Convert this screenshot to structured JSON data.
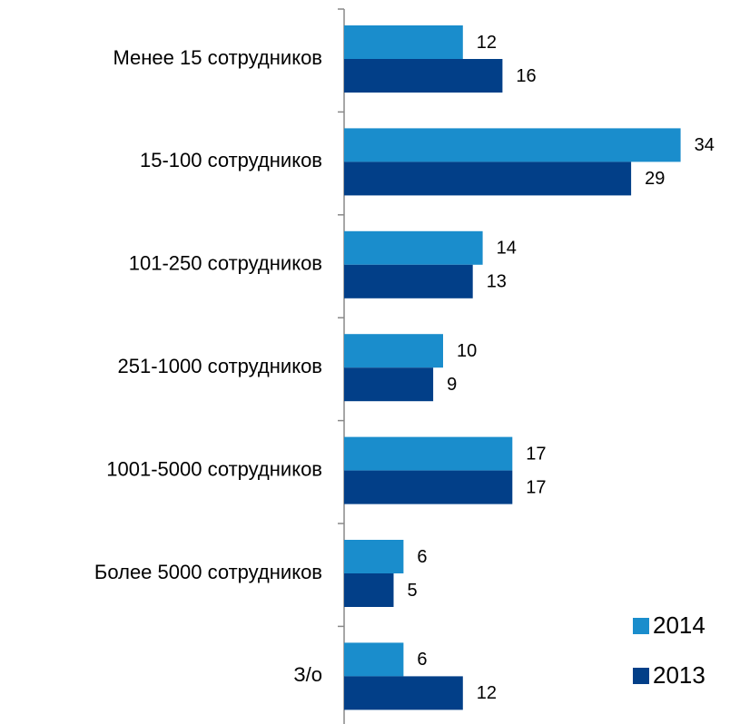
{
  "chart_data": {
    "type": "bar",
    "orientation": "horizontal",
    "categories": [
      "Менее 15 сотрудников",
      "15-100 сотрудников",
      "101-250 сотрудников",
      "251-1000 сотрудников",
      "1001-5000 сотрудников",
      "Более 5000 сотрудников",
      "З/о"
    ],
    "series": [
      {
        "name": "2014",
        "color": "#1a8dcc",
        "values": [
          12,
          34,
          14,
          10,
          17,
          6,
          6
        ]
      },
      {
        "name": "2013",
        "color": "#023f88",
        "values": [
          16,
          29,
          13,
          9,
          17,
          5,
          12
        ]
      }
    ],
    "legend": "bottom-right"
  }
}
